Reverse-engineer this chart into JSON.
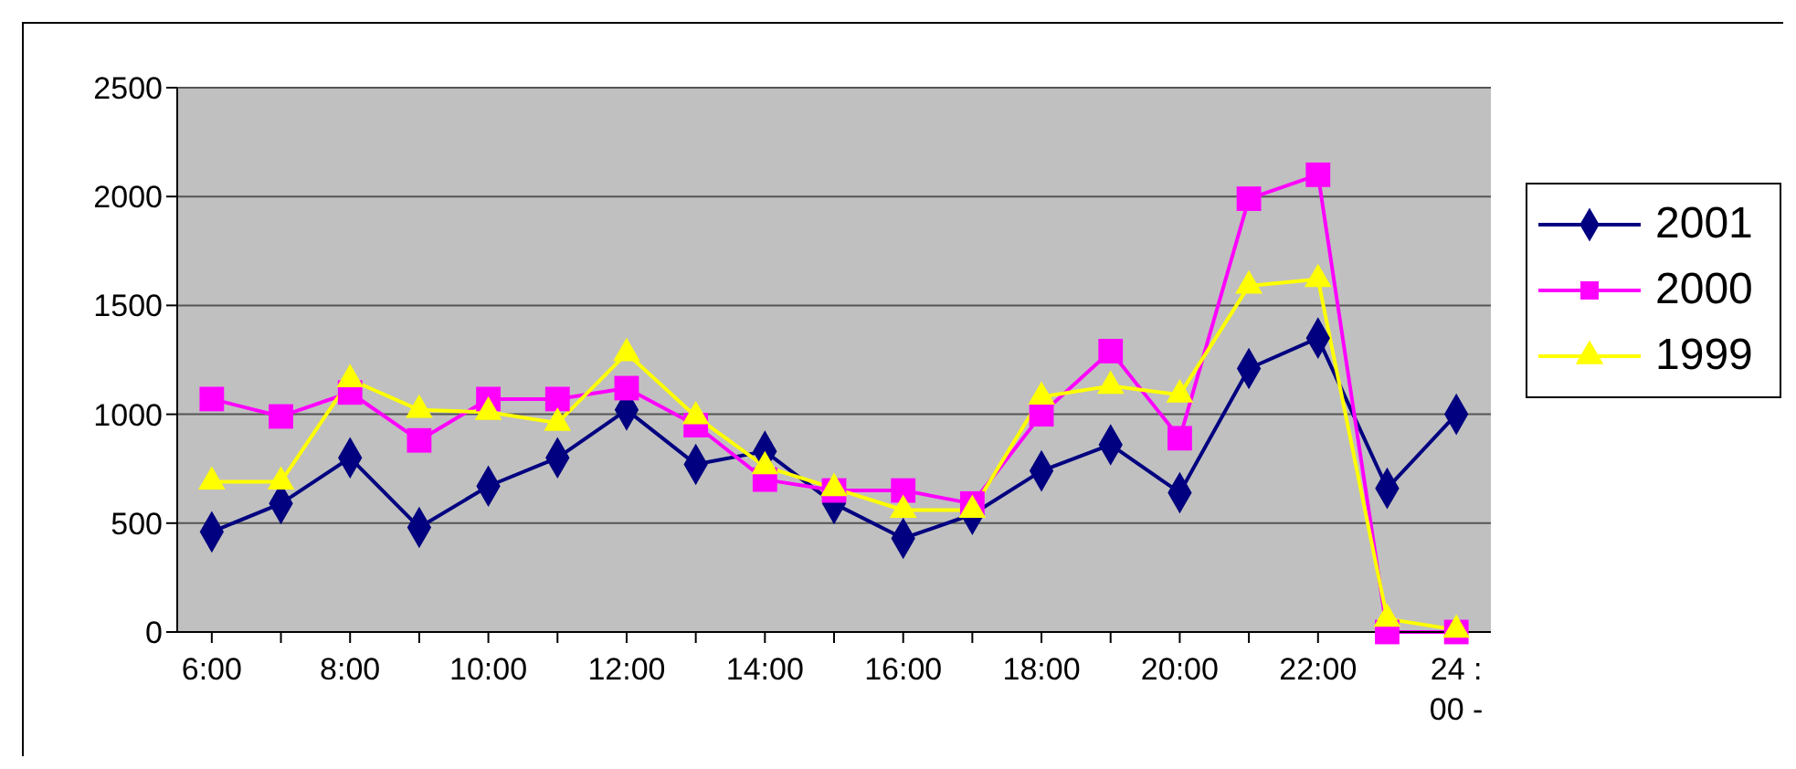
{
  "chart_data": {
    "type": "line",
    "categories": [
      "6:00",
      null,
      "8:00",
      null,
      "10:00",
      null,
      "12:00",
      null,
      "14:00",
      null,
      "16:00",
      null,
      "18:00",
      null,
      "20:00",
      null,
      "22:00",
      null,
      "24 : 00 -"
    ],
    "series": [
      {
        "name": "2001",
        "color": "#000080",
        "marker": "diamond",
        "values": [
          460,
          590,
          800,
          480,
          670,
          800,
          1020,
          770,
          830,
          590,
          430,
          540,
          740,
          860,
          640,
          1210,
          1350,
          660,
          1000
        ]
      },
      {
        "name": "2000",
        "color": "#ff00ff",
        "marker": "square",
        "values": [
          1070,
          990,
          1100,
          880,
          1070,
          1070,
          1120,
          950,
          700,
          650,
          650,
          590,
          1000,
          1290,
          890,
          1990,
          2100,
          0,
          0
        ]
      },
      {
        "name": "1999",
        "color": "#ffff00",
        "marker": "triangle",
        "values": [
          690,
          690,
          1160,
          1020,
          1010,
          960,
          1280,
          990,
          760,
          660,
          560,
          560,
          1080,
          1130,
          1090,
          1590,
          1620,
          60,
          10
        ]
      }
    ],
    "ylim": [
      0,
      2500
    ],
    "yticks": [
      0,
      500,
      1000,
      1500,
      2000,
      2500
    ],
    "grid": "y",
    "legend": "right"
  }
}
